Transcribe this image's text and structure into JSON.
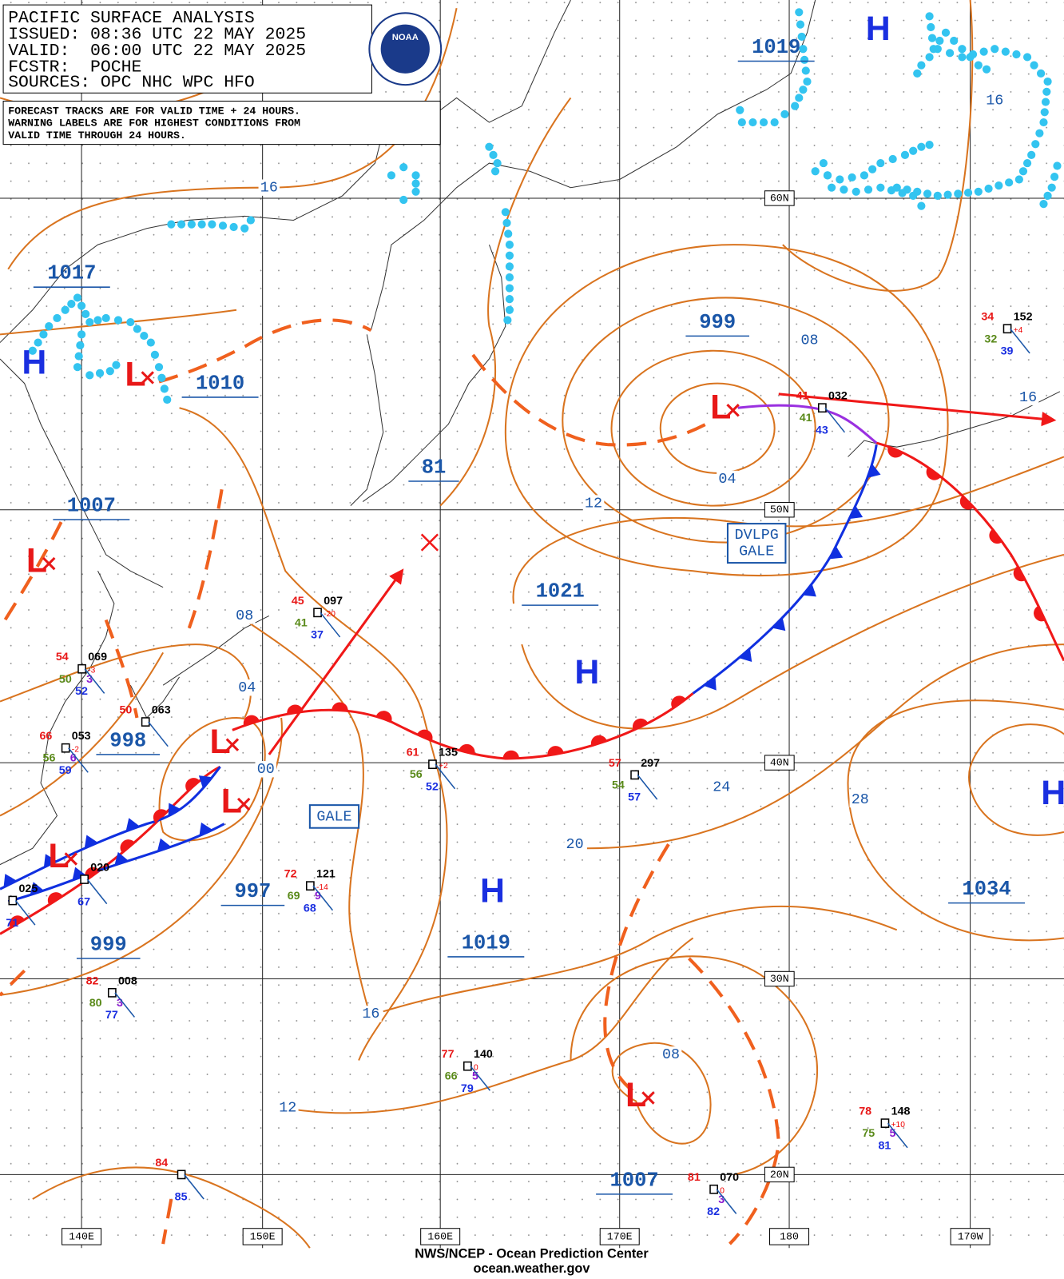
{
  "header": {
    "title": "PACIFIC SURFACE ANALYSIS",
    "issued": "ISSUED: 08:36 UTC 22 MAY 2025",
    "valid": "VALID:  06:00 UTC 22 MAY 2025",
    "forecaster": "FCSTR:  POCHE",
    "sources": "SOURCES: OPC NHC WPC HFO"
  },
  "notice": [
    "FORECAST TRACKS ARE FOR VALID TIME + 24 HOURS.",
    "WARNING LABELS ARE FOR HIGHEST CONDITIONS FROM",
    "VALID TIME THROUGH 24 HOURS."
  ],
  "logo": "NOAA",
  "latitude_labels": [
    "60N",
    "50N",
    "40N",
    "30N",
    "20N"
  ],
  "longitude_labels": [
    "140E",
    "150E",
    "160E",
    "170E",
    "180",
    "170W"
  ],
  "pressure_systems": [
    {
      "letter": "H"
    },
    {
      "letter": "H"
    },
    {
      "letter": "H"
    },
    {
      "letter": "H"
    },
    {
      "letter": "H"
    },
    {
      "letter": "L"
    },
    {
      "letter": "L"
    },
    {
      "letter": "L"
    },
    {
      "letter": "L"
    },
    {
      "letter": "L"
    },
    {
      "letter": "L"
    },
    {
      "letter": "L"
    }
  ],
  "central_pressures": [
    "1019",
    "1017",
    "1010",
    "1007",
    "999",
    "81",
    "1021",
    "998",
    "997",
    "999",
    "1019",
    "1007",
    "1034"
  ],
  "isobar_labels": [
    "16",
    "16",
    "08",
    "16",
    "04",
    "12",
    "08",
    "04",
    "00",
    "24",
    "28",
    "20",
    "16",
    "12",
    "08"
  ],
  "warnings": [
    {
      "lines": [
        "DVLPG",
        "GALE"
      ]
    },
    {
      "lines": [
        "GALE"
      ]
    }
  ],
  "stations": [
    {
      "temp": "54",
      "pressure": "069",
      "tendency": "-3",
      "dew": "50",
      "vis": "3",
      "sst": "52"
    },
    {
      "temp": "66",
      "pressure": "053",
      "tendency": "-2",
      "dew": "56",
      "vis": "6",
      "sst": "59"
    },
    {
      "temp": "50",
      "pressure": "063"
    },
    {
      "temp": "45",
      "pressure": "097",
      "tendency": "-20",
      "dew": "41",
      "sst": "37"
    },
    {
      "temp": "61",
      "pressure": "135",
      "tendency": "+2",
      "dew": "56",
      "sst": "52"
    },
    {
      "temp": "57",
      "pressure": "297",
      "dew": "54",
      "sst": "57"
    },
    {
      "temp": "41",
      "pressure": "032",
      "dew": "41",
      "sst": "43"
    },
    {
      "temp": "34",
      "pressure": "152",
      "tendency": "+4",
      "dew": "32",
      "sst": "39"
    },
    {
      "pressure": "020",
      "sst": "67"
    },
    {
      "pressure": "025",
      "sst": "71"
    },
    {
      "temp": "72",
      "pressure": "121",
      "tendency": "-14",
      "dew": "69",
      "vis": "9",
      "sst": "68"
    },
    {
      "temp": "82",
      "pressure": "008",
      "dew": "80",
      "vis": "3",
      "sst": "77"
    },
    {
      "temp": "77",
      "pressure": "140",
      "tendency": "0",
      "dew": "66",
      "vis": "5",
      "sst": "79"
    },
    {
      "temp": "78",
      "pressure": "148",
      "tendency": "+10",
      "dew": "75",
      "vis": "5",
      "sst": "81"
    },
    {
      "temp": "81",
      "pressure": "070",
      "tendency": "0",
      "vis": "3",
      "sst": "82"
    },
    {
      "temp": "84",
      "sst": "85"
    }
  ],
  "footer": {
    "agency": "NWS/NCEP - Ocean Prediction Center",
    "website": "ocean.weather.gov"
  }
}
